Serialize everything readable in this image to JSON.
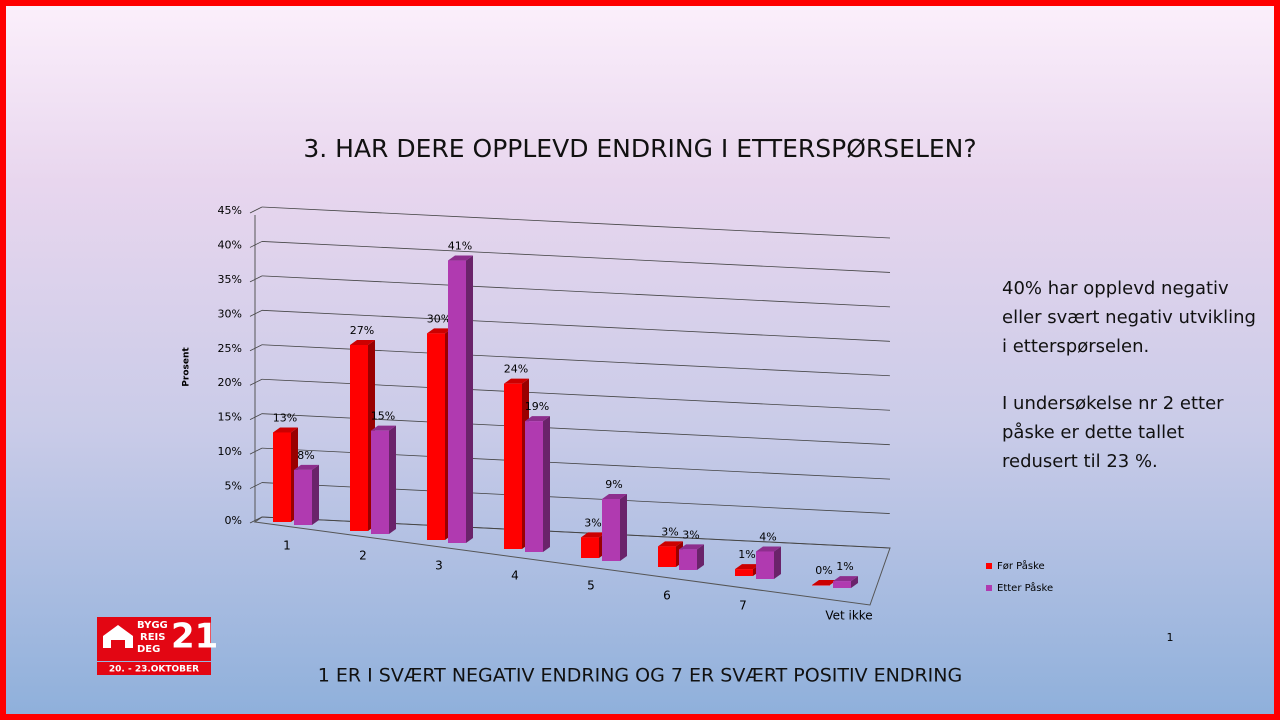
{
  "slide": {
    "title": "3. HAR DERE OPPLEVD ENDRING I ETTERSPØRSELEN?",
    "notes": [
      "40% har opplevd negativ eller svært negativ utvikling i etterspørselen.",
      "I undersøkelse nr 2 etter påske er dette tallet redusert til 23 %."
    ],
    "footer": "1 ER I SVÆRT NEGATIV ENDRING OG 7 ER SVÆRT POSITIV ENDRING",
    "page_number": "1",
    "logo": {
      "lines": [
        "BYGG",
        "REIS",
        "DEG"
      ],
      "number": "21",
      "dates": "20. - 23.OKTOBER"
    }
  },
  "chart_data": {
    "type": "bar3d",
    "ylabel": "Prosent",
    "categories": [
      "1",
      "2",
      "3",
      "4",
      "5",
      "6",
      "7",
      "Vet ikke"
    ],
    "series": [
      {
        "name": "Før Påske",
        "color": "#ff0000",
        "values": [
          13,
          27,
          30,
          24,
          3,
          3,
          1,
          0
        ],
        "value_labels": [
          "13%",
          "27%",
          "30%",
          "24%",
          "3%",
          "3%",
          "1%",
          "0%"
        ]
      },
      {
        "name": "Etter Påske",
        "color": "#b03ab0",
        "values": [
          8,
          15,
          41,
          19,
          9,
          3,
          4,
          1
        ],
        "value_labels": [
          "8%",
          "15%",
          "41%",
          "19%",
          "9%",
          "3%",
          "4%",
          "1%"
        ]
      }
    ],
    "ylim": [
      0,
      45
    ],
    "yticks": [
      {
        "value": 0,
        "label": "0%"
      },
      {
        "value": 5,
        "label": "5%"
      },
      {
        "value": 10,
        "label": "10%"
      },
      {
        "value": 15,
        "label": "15%"
      },
      {
        "value": 20,
        "label": "20%"
      },
      {
        "value": 25,
        "label": "25%"
      },
      {
        "value": 30,
        "label": "30%"
      },
      {
        "value": 35,
        "label": "35%"
      },
      {
        "value": 40,
        "label": "40%"
      },
      {
        "value": 45,
        "label": "45%"
      }
    ],
    "grid": true,
    "legend": "right"
  }
}
